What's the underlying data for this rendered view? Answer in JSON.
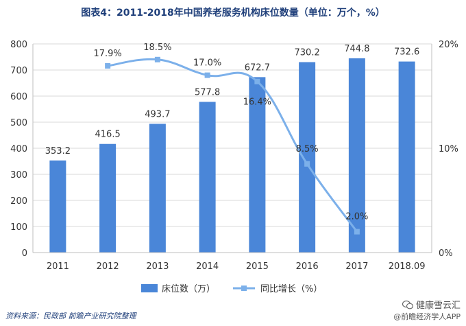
{
  "chart_data": {
    "type": "bar+line",
    "title": "图表4：2011-2018年中国养老服务机构床位数量（单位：万个，%）",
    "categories": [
      "2011",
      "2012",
      "2013",
      "2014",
      "2015",
      "2016",
      "2017",
      "2018.09"
    ],
    "series": [
      {
        "name": "床位数（万）",
        "type": "bar",
        "axis": "left",
        "color": "#4a86d8",
        "values": [
          353.2,
          416.5,
          493.7,
          577.8,
          672.7,
          730.2,
          744.8,
          732.6
        ],
        "labels": [
          "353.2",
          "416.5",
          "493.7",
          "577.8",
          "672.7",
          "730.2",
          "744.8",
          "732.6"
        ]
      },
      {
        "name": "同比增长（%）",
        "type": "line",
        "axis": "right",
        "color": "#7cb0ea",
        "values": [
          null,
          17.9,
          18.5,
          17.0,
          16.4,
          8.5,
          2.0,
          null
        ],
        "labels": [
          "",
          "17.9%",
          "18.5%",
          "17.0%",
          "16.4%",
          "8.5%",
          "2.0%",
          ""
        ]
      }
    ],
    "y_left": {
      "range": [
        0,
        800
      ],
      "ticks": [
        0,
        100,
        200,
        300,
        400,
        500,
        600,
        700,
        800
      ],
      "tick_labels": [
        "0",
        "100",
        "200",
        "300",
        "400",
        "500",
        "600",
        "700",
        "800"
      ]
    },
    "y_right": {
      "range": [
        0,
        20
      ],
      "ticks": [
        0,
        10,
        20
      ],
      "tick_labels": [
        "0%",
        "10%",
        "20%"
      ]
    },
    "grid": "horizontal",
    "legend": "bottom-center"
  },
  "footer": {
    "source": "资料来源：民政部  前瞻产业研究院整理",
    "brand": "健康雪云汇",
    "app": "@前瞻经济学人APP"
  },
  "colors": {
    "title": "#1f3f7a",
    "grid": "#d9d9d9"
  }
}
